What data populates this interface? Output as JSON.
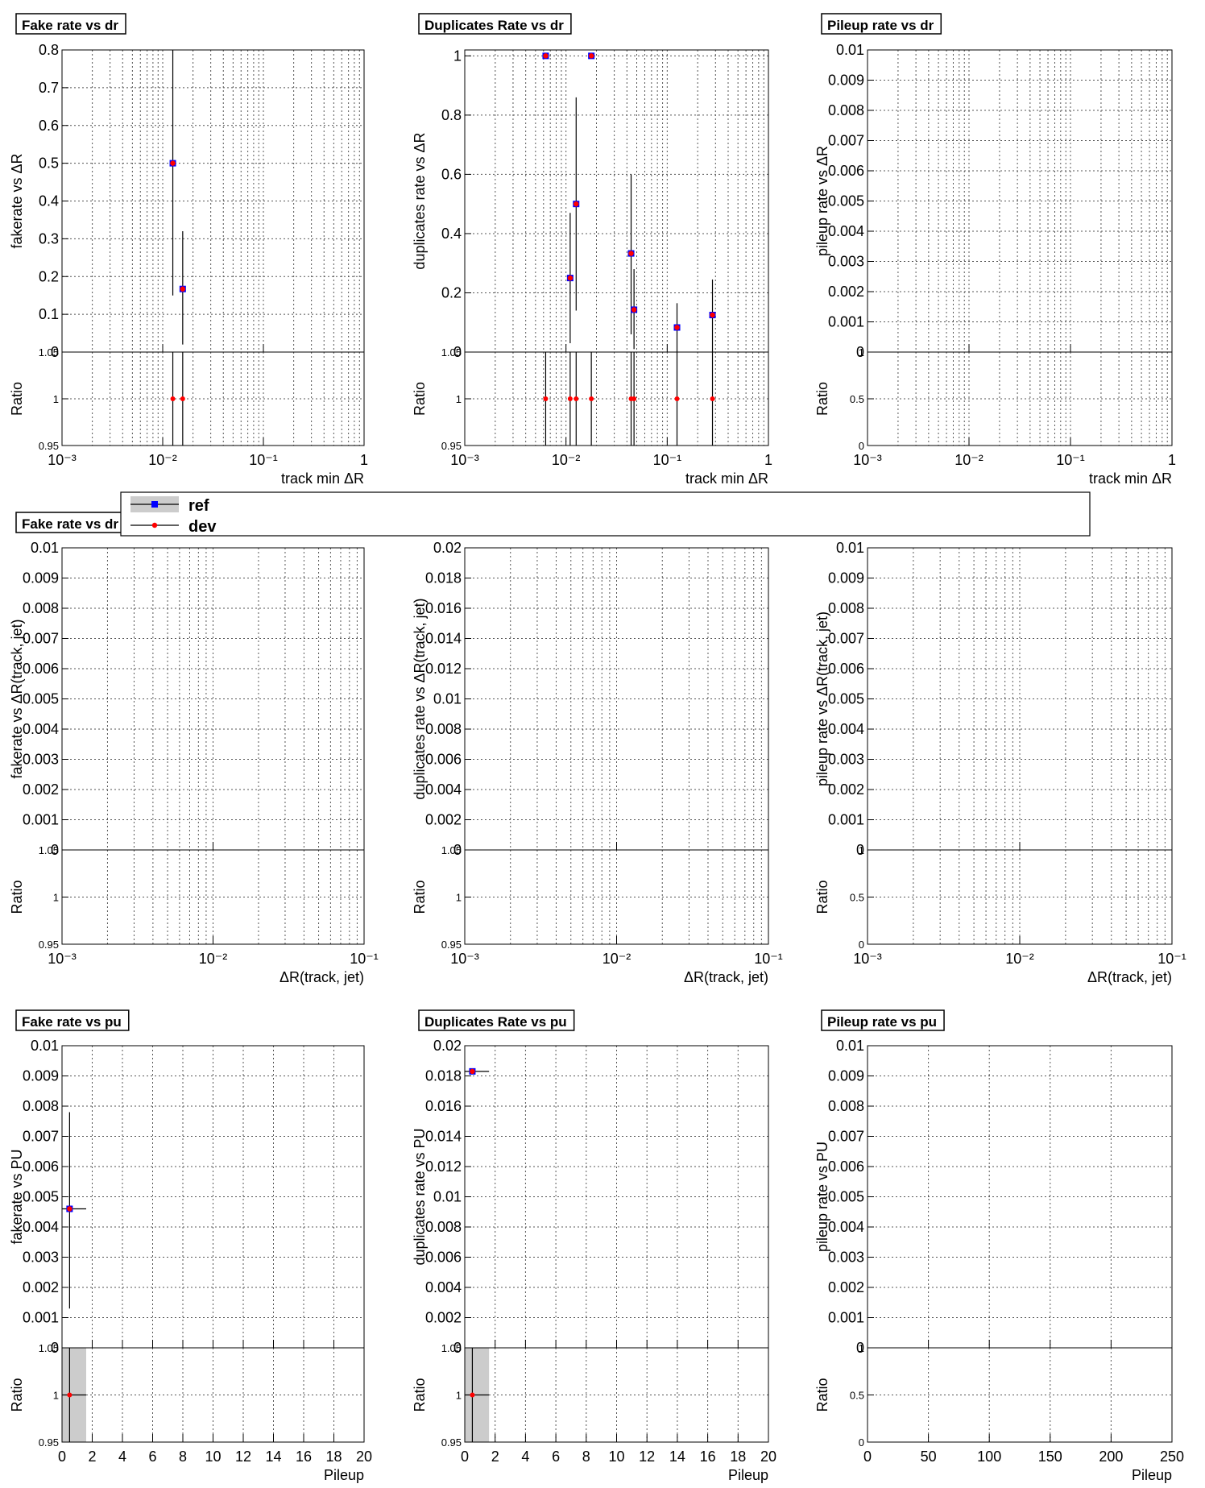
{
  "colors": {
    "ref": "#0000ff",
    "dev": "#ff0000",
    "band": "#cccccc",
    "grid": "#555555"
  },
  "legend": {
    "entries": [
      {
        "label": "ref",
        "color": "#0000ff"
      },
      {
        "label": "dev",
        "color": "#ff0000"
      }
    ]
  },
  "chart_data": [
    {
      "type": "scatter",
      "title": "Fake rate vs dr",
      "ylabel": "fakerate vs  ΔR",
      "xlabel": "track min  ΔR",
      "xscale": "log",
      "xlim": [
        0.001,
        1
      ],
      "xticks": [
        {
          "v": 0.001,
          "t": "10⁻³"
        },
        {
          "v": 0.01,
          "t": "10⁻²"
        },
        {
          "v": 0.1,
          "t": "10⁻¹"
        },
        {
          "v": 1,
          "t": "1"
        }
      ],
      "ylim": [
        0,
        0.8
      ],
      "yticks": [
        {
          "v": 0,
          "t": "0"
        },
        {
          "v": 0.1,
          "t": "0.1"
        },
        {
          "v": 0.2,
          "t": "0.2"
        },
        {
          "v": 0.3,
          "t": "0.3"
        },
        {
          "v": 0.4,
          "t": "0.4"
        },
        {
          "v": 0.5,
          "t": "0.5"
        },
        {
          "v": 0.6,
          "t": "0.6"
        },
        {
          "v": 0.7,
          "t": "0.7"
        },
        {
          "v": 0.8,
          "t": "0.8"
        }
      ],
      "points": [
        {
          "x": 0.0126,
          "y": 0.5,
          "lo": 0.15,
          "hi": 0.85
        },
        {
          "x": 0.0158,
          "y": 0.167,
          "lo": 0.02,
          "hi": 0.32
        }
      ],
      "ratio_ylabel": "Ratio",
      "ratio_ylim": [
        0.95,
        1.05
      ],
      "ratio_yticks": [
        {
          "v": 0.95,
          "t": "0.95"
        },
        {
          "v": 1,
          "t": "1"
        },
        {
          "v": 1.05,
          "t": "1.05"
        }
      ],
      "ratio_points": [
        {
          "x": 0.0126,
          "y": 1
        },
        {
          "x": 0.0158,
          "y": 1
        }
      ]
    },
    {
      "type": "scatter",
      "title": "Duplicates Rate vs dr",
      "ylabel": "duplicates rate vs  ΔR",
      "xlabel": "track min  ΔR",
      "xscale": "log",
      "xlim": [
        0.001,
        1
      ],
      "xticks": [
        {
          "v": 0.001,
          "t": "10⁻³"
        },
        {
          "v": 0.01,
          "t": "10⁻²"
        },
        {
          "v": 0.1,
          "t": "10⁻¹"
        },
        {
          "v": 1,
          "t": "1"
        }
      ],
      "ylim": [
        0,
        1.02
      ],
      "yticks": [
        {
          "v": 0,
          "t": "0"
        },
        {
          "v": 0.2,
          "t": "0.2"
        },
        {
          "v": 0.4,
          "t": "0.4"
        },
        {
          "v": 0.6,
          "t": "0.6"
        },
        {
          "v": 0.8,
          "t": "0.8"
        },
        {
          "v": 1,
          "t": "1"
        }
      ],
      "points": [
        {
          "x": 0.0063,
          "y": 1,
          "lo": 1,
          "hi": 1
        },
        {
          "x": 0.011,
          "y": 0.25,
          "lo": 0.03,
          "hi": 0.47
        },
        {
          "x": 0.0126,
          "y": 0.5,
          "lo": 0.14,
          "hi": 0.86
        },
        {
          "x": 0.0178,
          "y": 1,
          "lo": 1,
          "hi": 1
        },
        {
          "x": 0.044,
          "y": 0.333,
          "lo": 0.06,
          "hi": 0.6
        },
        {
          "x": 0.047,
          "y": 0.143,
          "lo": 0.01,
          "hi": 0.28
        },
        {
          "x": 0.125,
          "y": 0.083,
          "lo": 0,
          "hi": 0.165
        },
        {
          "x": 0.28,
          "y": 0.125,
          "lo": 0,
          "hi": 0.245
        }
      ],
      "ratio_ylabel": "Ratio",
      "ratio_ylim": [
        0.95,
        1.05
      ],
      "ratio_yticks": [
        {
          "v": 0.95,
          "t": "0.95"
        },
        {
          "v": 1,
          "t": "1"
        },
        {
          "v": 1.05,
          "t": "1.05"
        }
      ],
      "ratio_points": [
        {
          "x": 0.0063,
          "y": 1
        },
        {
          "x": 0.011,
          "y": 1
        },
        {
          "x": 0.0126,
          "y": 1
        },
        {
          "x": 0.0178,
          "y": 1
        },
        {
          "x": 0.044,
          "y": 1
        },
        {
          "x": 0.047,
          "y": 1
        },
        {
          "x": 0.125,
          "y": 1
        },
        {
          "x": 0.28,
          "y": 1
        }
      ]
    },
    {
      "type": "scatter",
      "title": "Pileup rate vs dr",
      "ylabel": "pileup rate vs  ΔR",
      "xlabel": "track min  ΔR",
      "xscale": "log",
      "xlim": [
        0.001,
        1
      ],
      "xticks": [
        {
          "v": 0.001,
          "t": "10⁻³"
        },
        {
          "v": 0.01,
          "t": "10⁻²"
        },
        {
          "v": 0.1,
          "t": "10⁻¹"
        },
        {
          "v": 1,
          "t": "1"
        }
      ],
      "ylim": [
        0,
        0.01
      ],
      "yticks": [
        {
          "v": 0,
          "t": "0"
        },
        {
          "v": 0.001,
          "t": "0.001"
        },
        {
          "v": 0.002,
          "t": "0.002"
        },
        {
          "v": 0.003,
          "t": "0.003"
        },
        {
          "v": 0.004,
          "t": "0.004"
        },
        {
          "v": 0.005,
          "t": "0.005"
        },
        {
          "v": 0.006,
          "t": "0.006"
        },
        {
          "v": 0.007,
          "t": "0.007"
        },
        {
          "v": 0.008,
          "t": "0.008"
        },
        {
          "v": 0.009,
          "t": "0.009"
        },
        {
          "v": 0.01,
          "t": "0.01"
        }
      ],
      "points": [],
      "ratio_ylabel": "Ratio",
      "ratio_ylim": [
        0,
        1
      ],
      "ratio_yticks": [
        {
          "v": 0,
          "t": "0"
        },
        {
          "v": 0.5,
          "t": "0.5"
        },
        {
          "v": 1,
          "t": "1"
        }
      ],
      "ratio_points": []
    },
    {
      "type": "scatter",
      "title": "Fake rate vs dr",
      "ylabel": "fakerate vs  ΔR(track, jet)",
      "xlabel": "ΔR(track, jet)",
      "xscale": "log",
      "xlim": [
        0.001,
        0.1
      ],
      "xticks": [
        {
          "v": 0.001,
          "t": "10⁻³"
        },
        {
          "v": 0.01,
          "t": "10⁻²"
        },
        {
          "v": 0.1,
          "t": "10⁻¹"
        }
      ],
      "ylim": [
        0,
        0.01
      ],
      "yticks": [
        {
          "v": 0,
          "t": "0"
        },
        {
          "v": 0.001,
          "t": "0.001"
        },
        {
          "v": 0.002,
          "t": "0.002"
        },
        {
          "v": 0.003,
          "t": "0.003"
        },
        {
          "v": 0.004,
          "t": "0.004"
        },
        {
          "v": 0.005,
          "t": "0.005"
        },
        {
          "v": 0.006,
          "t": "0.006"
        },
        {
          "v": 0.007,
          "t": "0.007"
        },
        {
          "v": 0.008,
          "t": "0.008"
        },
        {
          "v": 0.009,
          "t": "0.009"
        },
        {
          "v": 0.01,
          "t": "0.01"
        }
      ],
      "points": [],
      "ratio_ylabel": "Ratio",
      "ratio_ylim": [
        0.95,
        1.05
      ],
      "ratio_yticks": [
        {
          "v": 0.95,
          "t": "0.95"
        },
        {
          "v": 1,
          "t": "1"
        },
        {
          "v": 1.05,
          "t": "1.05"
        }
      ],
      "ratio_points": []
    },
    {
      "type": "scatter",
      "title": "",
      "ylabel": "duplicates rate vs  ΔR(track, jet)",
      "xlabel": "ΔR(track, jet)",
      "xscale": "log",
      "xlim": [
        0.001,
        0.1
      ],
      "xticks": [
        {
          "v": 0.001,
          "t": "10⁻³"
        },
        {
          "v": 0.01,
          "t": "10⁻²"
        },
        {
          "v": 0.1,
          "t": "10⁻¹"
        }
      ],
      "ylim": [
        0,
        0.02
      ],
      "yticks": [
        {
          "v": 0,
          "t": "0"
        },
        {
          "v": 0.002,
          "t": "0.002"
        },
        {
          "v": 0.004,
          "t": "0.004"
        },
        {
          "v": 0.006,
          "t": "0.006"
        },
        {
          "v": 0.008,
          "t": "0.008"
        },
        {
          "v": 0.01,
          "t": "0.01"
        },
        {
          "v": 0.012,
          "t": "0.012"
        },
        {
          "v": 0.014,
          "t": "0.014"
        },
        {
          "v": 0.016,
          "t": "0.016"
        },
        {
          "v": 0.018,
          "t": "0.018"
        },
        {
          "v": 0.02,
          "t": "0.02"
        }
      ],
      "points": [],
      "ratio_ylabel": "Ratio",
      "ratio_ylim": [
        0.95,
        1.05
      ],
      "ratio_yticks": [
        {
          "v": 0.95,
          "t": "0.95"
        },
        {
          "v": 1,
          "t": "1"
        },
        {
          "v": 1.05,
          "t": "1.05"
        }
      ],
      "ratio_points": []
    },
    {
      "type": "scatter",
      "title": "",
      "ylabel": "pileup rate vs  ΔR(track, jet)",
      "xlabel": "ΔR(track, jet)",
      "xscale": "log",
      "xlim": [
        0.001,
        0.1
      ],
      "xticks": [
        {
          "v": 0.001,
          "t": "10⁻³"
        },
        {
          "v": 0.01,
          "t": "10⁻²"
        },
        {
          "v": 0.1,
          "t": "10⁻¹"
        }
      ],
      "ylim": [
        0,
        0.01
      ],
      "yticks": [
        {
          "v": 0,
          "t": "0"
        },
        {
          "v": 0.001,
          "t": "0.001"
        },
        {
          "v": 0.002,
          "t": "0.002"
        },
        {
          "v": 0.003,
          "t": "0.003"
        },
        {
          "v": 0.004,
          "t": "0.004"
        },
        {
          "v": 0.005,
          "t": "0.005"
        },
        {
          "v": 0.006,
          "t": "0.006"
        },
        {
          "v": 0.007,
          "t": "0.007"
        },
        {
          "v": 0.008,
          "t": "0.008"
        },
        {
          "v": 0.009,
          "t": "0.009"
        },
        {
          "v": 0.01,
          "t": "0.01"
        }
      ],
      "points": [],
      "ratio_ylabel": "Ratio",
      "ratio_ylim": [
        0,
        1
      ],
      "ratio_yticks": [
        {
          "v": 0,
          "t": "0"
        },
        {
          "v": 0.5,
          "t": "0.5"
        },
        {
          "v": 1,
          "t": "1"
        }
      ],
      "ratio_points": []
    },
    {
      "type": "scatter",
      "title": "Fake rate vs pu",
      "ylabel": "fakerate vs PU",
      "xlabel": "Pileup",
      "xscale": "linear",
      "xlim": [
        0,
        20
      ],
      "xticks": [
        {
          "v": 0,
          "t": "0"
        },
        {
          "v": 2,
          "t": "2"
        },
        {
          "v": 4,
          "t": "4"
        },
        {
          "v": 6,
          "t": "6"
        },
        {
          "v": 8,
          "t": "8"
        },
        {
          "v": 10,
          "t": "10"
        },
        {
          "v": 12,
          "t": "12"
        },
        {
          "v": 14,
          "t": "14"
        },
        {
          "v": 16,
          "t": "16"
        },
        {
          "v": 18,
          "t": "18"
        },
        {
          "v": 20,
          "t": "20"
        }
      ],
      "ylim": [
        0,
        0.01
      ],
      "yticks": [
        {
          "v": 0,
          "t": "0"
        },
        {
          "v": 0.001,
          "t": "0.001"
        },
        {
          "v": 0.002,
          "t": "0.002"
        },
        {
          "v": 0.003,
          "t": "0.003"
        },
        {
          "v": 0.004,
          "t": "0.004"
        },
        {
          "v": 0.005,
          "t": "0.005"
        },
        {
          "v": 0.006,
          "t": "0.006"
        },
        {
          "v": 0.007,
          "t": "0.007"
        },
        {
          "v": 0.008,
          "t": "0.008"
        },
        {
          "v": 0.009,
          "t": "0.009"
        },
        {
          "v": 0.01,
          "t": "0.01"
        }
      ],
      "points": [
        {
          "x": 0.5,
          "y": 0.0046,
          "lo": 0.0013,
          "hi": 0.0078,
          "xlo": 0,
          "xhi": 1.6
        }
      ],
      "ratio_ylabel": "Ratio",
      "ratio_ylim": [
        0.95,
        1.05
      ],
      "ratio_yticks": [
        {
          "v": 0.95,
          "t": "0.95"
        },
        {
          "v": 1,
          "t": "1"
        },
        {
          "v": 1.05,
          "t": "1.05"
        }
      ],
      "ratio_band": [
        0,
        1.6
      ],
      "ratio_points": [
        {
          "x": 0.5,
          "y": 1,
          "xlo": 0,
          "xhi": 1.6
        }
      ]
    },
    {
      "type": "scatter",
      "title": "Duplicates Rate vs pu",
      "ylabel": "duplicates rate vs PU",
      "xlabel": "Pileup",
      "xscale": "linear",
      "xlim": [
        0,
        20
      ],
      "xticks": [
        {
          "v": 0,
          "t": "0"
        },
        {
          "v": 2,
          "t": "2"
        },
        {
          "v": 4,
          "t": "4"
        },
        {
          "v": 6,
          "t": "6"
        },
        {
          "v": 8,
          "t": "8"
        },
        {
          "v": 10,
          "t": "10"
        },
        {
          "v": 12,
          "t": "12"
        },
        {
          "v": 14,
          "t": "14"
        },
        {
          "v": 16,
          "t": "16"
        },
        {
          "v": 18,
          "t": "18"
        },
        {
          "v": 20,
          "t": "20"
        }
      ],
      "ylim": [
        0,
        0.02
      ],
      "yticks": [
        {
          "v": 0,
          "t": "0"
        },
        {
          "v": 0.002,
          "t": "0.002"
        },
        {
          "v": 0.004,
          "t": "0.004"
        },
        {
          "v": 0.006,
          "t": "0.006"
        },
        {
          "v": 0.008,
          "t": "0.008"
        },
        {
          "v": 0.01,
          "t": "0.01"
        },
        {
          "v": 0.012,
          "t": "0.012"
        },
        {
          "v": 0.014,
          "t": "0.014"
        },
        {
          "v": 0.016,
          "t": "0.016"
        },
        {
          "v": 0.018,
          "t": "0.018"
        },
        {
          "v": 0.02,
          "t": "0.02"
        }
      ],
      "points": [
        {
          "x": 0.5,
          "y": 0.0183,
          "lo": 0.0183,
          "hi": 0.0183,
          "xlo": 0,
          "xhi": 1.6
        }
      ],
      "ratio_ylabel": "Ratio",
      "ratio_ylim": [
        0.95,
        1.05
      ],
      "ratio_yticks": [
        {
          "v": 0.95,
          "t": "0.95"
        },
        {
          "v": 1,
          "t": "1"
        },
        {
          "v": 1.05,
          "t": "1.05"
        }
      ],
      "ratio_band": [
        0,
        1.6
      ],
      "ratio_points": [
        {
          "x": 0.5,
          "y": 1,
          "xlo": 0,
          "xhi": 1.6
        }
      ]
    },
    {
      "type": "scatter",
      "title": "Pileup rate vs pu",
      "ylabel": "pileup rate vs PU",
      "xlabel": "Pileup",
      "xscale": "linear",
      "xlim": [
        0,
        250
      ],
      "xticks": [
        {
          "v": 0,
          "t": "0"
        },
        {
          "v": 50,
          "t": "50"
        },
        {
          "v": 100,
          "t": "100"
        },
        {
          "v": 150,
          "t": "150"
        },
        {
          "v": 200,
          "t": "200"
        },
        {
          "v": 250,
          "t": "250"
        }
      ],
      "ylim": [
        0,
        0.01
      ],
      "yticks": [
        {
          "v": 0,
          "t": "0"
        },
        {
          "v": 0.001,
          "t": "0.001"
        },
        {
          "v": 0.002,
          "t": "0.002"
        },
        {
          "v": 0.003,
          "t": "0.003"
        },
        {
          "v": 0.004,
          "t": "0.004"
        },
        {
          "v": 0.005,
          "t": "0.005"
        },
        {
          "v": 0.006,
          "t": "0.006"
        },
        {
          "v": 0.007,
          "t": "0.007"
        },
        {
          "v": 0.008,
          "t": "0.008"
        },
        {
          "v": 0.009,
          "t": "0.009"
        },
        {
          "v": 0.01,
          "t": "0.01"
        }
      ],
      "points": [],
      "ratio_ylabel": "Ratio",
      "ratio_ylim": [
        0,
        1
      ],
      "ratio_yticks": [
        {
          "v": 0,
          "t": "0"
        },
        {
          "v": 0.5,
          "t": "0.5"
        },
        {
          "v": 1,
          "t": "1"
        }
      ],
      "ratio_points": []
    }
  ]
}
